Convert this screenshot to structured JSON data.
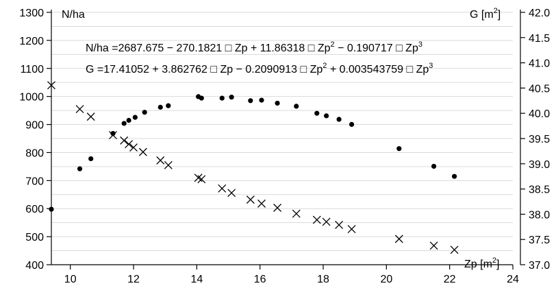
{
  "chart_data": {
    "type": "scatter",
    "xlabel": "Zp [m",
    "xlabel_sup": "2",
    "xlabel_end": "]",
    "ylabel_left": "N/ha",
    "ylabel_right": "G [m",
    "ylabel_right_sup": "2",
    "ylabel_right_end": "]",
    "xlim": [
      9.4,
      24
    ],
    "ylim_left": [
      400,
      1300
    ],
    "ylim_right": [
      37.0,
      42.0
    ],
    "x_ticks": [
      10,
      12,
      14,
      16,
      18,
      20,
      22,
      24
    ],
    "y_left_ticks": [
      400,
      500,
      600,
      700,
      800,
      900,
      1000,
      1100,
      1200,
      1300
    ],
    "y_right_ticks": [
      "37.0",
      "37.5",
      "38.0",
      "38.5",
      "39.0",
      "39.5",
      "40.0",
      "40.5",
      "41.0",
      "41.5",
      "42.0"
    ],
    "grid": "horizontal",
    "annotations": {
      "eq1": "N/ha =2687.675 − 270.1821 □ Zp + 11.86318 □ Zp",
      "eq1_sup1": "2",
      "eq1_tail": " − 0.190717 □ Zp",
      "eq1_sup2": "3",
      "eq2": "G =17.41052 + 3.862762 □ Zp − 0.2090913 □ Zp",
      "eq2_sup1": "2",
      "eq2_tail": " + 0.003543759 □ Zp",
      "eq2_sup2": "3"
    },
    "series": [
      {
        "marker": "cross",
        "axis": "left",
        "x": [
          9.4,
          10.3,
          10.65,
          11.35,
          11.7,
          11.85,
          12.0,
          12.3,
          12.85,
          13.1,
          14.05,
          14.15,
          14.8,
          15.1,
          15.7,
          16.05,
          16.55,
          17.15,
          17.8,
          18.1,
          18.5,
          18.9,
          20.4,
          21.5,
          22.15
        ],
        "y": [
          1040,
          955,
          928,
          862,
          843,
          830,
          818,
          802,
          772,
          755,
          710,
          705,
          672,
          656,
          632,
          618,
          603,
          582,
          560,
          553,
          542,
          527,
          492,
          468,
          453
        ]
      },
      {
        "marker": "dot",
        "axis": "right",
        "x": [
          9.4,
          10.3,
          10.65,
          11.35,
          11.7,
          11.85,
          12.05,
          12.35,
          12.85,
          13.1,
          14.05,
          14.15,
          14.8,
          15.1,
          15.7,
          16.05,
          16.55,
          17.15,
          17.8,
          18.1,
          18.5,
          18.9,
          20.4,
          21.5,
          22.15
        ],
        "y": [
          38.1,
          38.9,
          39.1,
          39.6,
          39.8,
          39.86,
          39.92,
          40.02,
          40.12,
          40.15,
          40.33,
          40.3,
          40.3,
          40.32,
          40.25,
          40.26,
          40.2,
          40.14,
          40.0,
          39.95,
          39.88,
          39.78,
          39.3,
          38.95,
          38.75
        ]
      }
    ]
  }
}
